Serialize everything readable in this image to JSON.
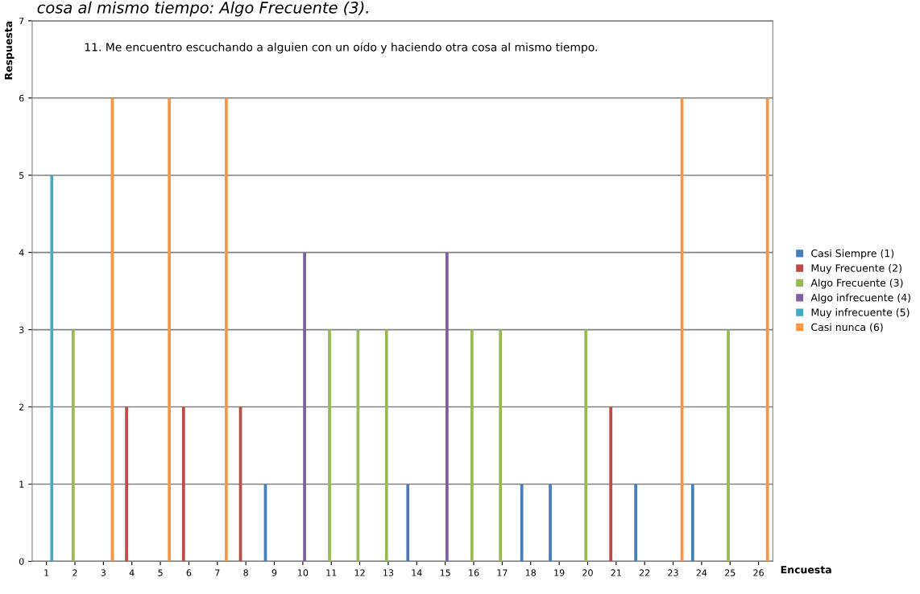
{
  "chart_data": {
    "type": "bar",
    "title": "11. Me encuentro escuchando a alguien con un oído y haciendo otra cosa al mismo tiempo.",
    "xlabel": "Encuesta",
    "ylabel": "Respuesta",
    "annotations": [
      "cosa al mismo tiempo: Algo Frecuente (3)."
    ],
    "categories": [
      "1",
      "2",
      "3",
      "4",
      "5",
      "6",
      "7",
      "8",
      "9",
      "10",
      "11",
      "12",
      "13",
      "14",
      "15",
      "16",
      "17",
      "18",
      "19",
      "20",
      "21",
      "22",
      "23",
      "24",
      "25",
      "26"
    ],
    "series": [
      {
        "name": "Casi Siempre (1)",
        "color": "#4a7ebb",
        "values": [
          null,
          null,
          null,
          null,
          null,
          null,
          null,
          null,
          1,
          null,
          null,
          null,
          null,
          1,
          null,
          null,
          null,
          1,
          1,
          null,
          null,
          1,
          null,
          1,
          null,
          null
        ]
      },
      {
        "name": "Muy Frecuente (2)",
        "color": "#be4b48",
        "values": [
          null,
          null,
          null,
          2,
          null,
          2,
          null,
          2,
          null,
          null,
          null,
          null,
          null,
          null,
          null,
          null,
          null,
          null,
          null,
          null,
          2,
          null,
          null,
          null,
          null,
          null
        ]
      },
      {
        "name": "Algo Frecuente (3)",
        "color": "#98b954",
        "values": [
          null,
          3,
          null,
          null,
          null,
          null,
          null,
          null,
          null,
          null,
          3,
          3,
          3,
          null,
          null,
          3,
          3,
          null,
          null,
          3,
          null,
          null,
          null,
          null,
          3,
          null
        ]
      },
      {
        "name": "Algo infrecuente (4)",
        "color": "#7d60a0",
        "values": [
          null,
          null,
          null,
          null,
          null,
          null,
          null,
          null,
          null,
          4,
          null,
          null,
          null,
          null,
          4,
          null,
          null,
          null,
          null,
          null,
          null,
          null,
          null,
          null,
          null,
          null
        ]
      },
      {
        "name": "Muy infrecuente (5)",
        "color": "#46aac5",
        "values": [
          5,
          null,
          null,
          null,
          null,
          null,
          null,
          null,
          null,
          null,
          null,
          null,
          null,
          null,
          null,
          null,
          null,
          null,
          null,
          null,
          null,
          null,
          null,
          null,
          null,
          null
        ]
      },
      {
        "name": "Casi nunca (6)",
        "color": "#f79646",
        "values": [
          null,
          null,
          6,
          null,
          6,
          null,
          6,
          null,
          null,
          null,
          null,
          null,
          null,
          null,
          null,
          null,
          null,
          null,
          null,
          null,
          null,
          null,
          6,
          null,
          null,
          6
        ]
      }
    ],
    "ylim": [
      0,
      7
    ],
    "yticks": [
      0,
      1,
      2,
      3,
      4,
      5,
      6,
      7
    ],
    "grid": "y",
    "legend": "right"
  }
}
